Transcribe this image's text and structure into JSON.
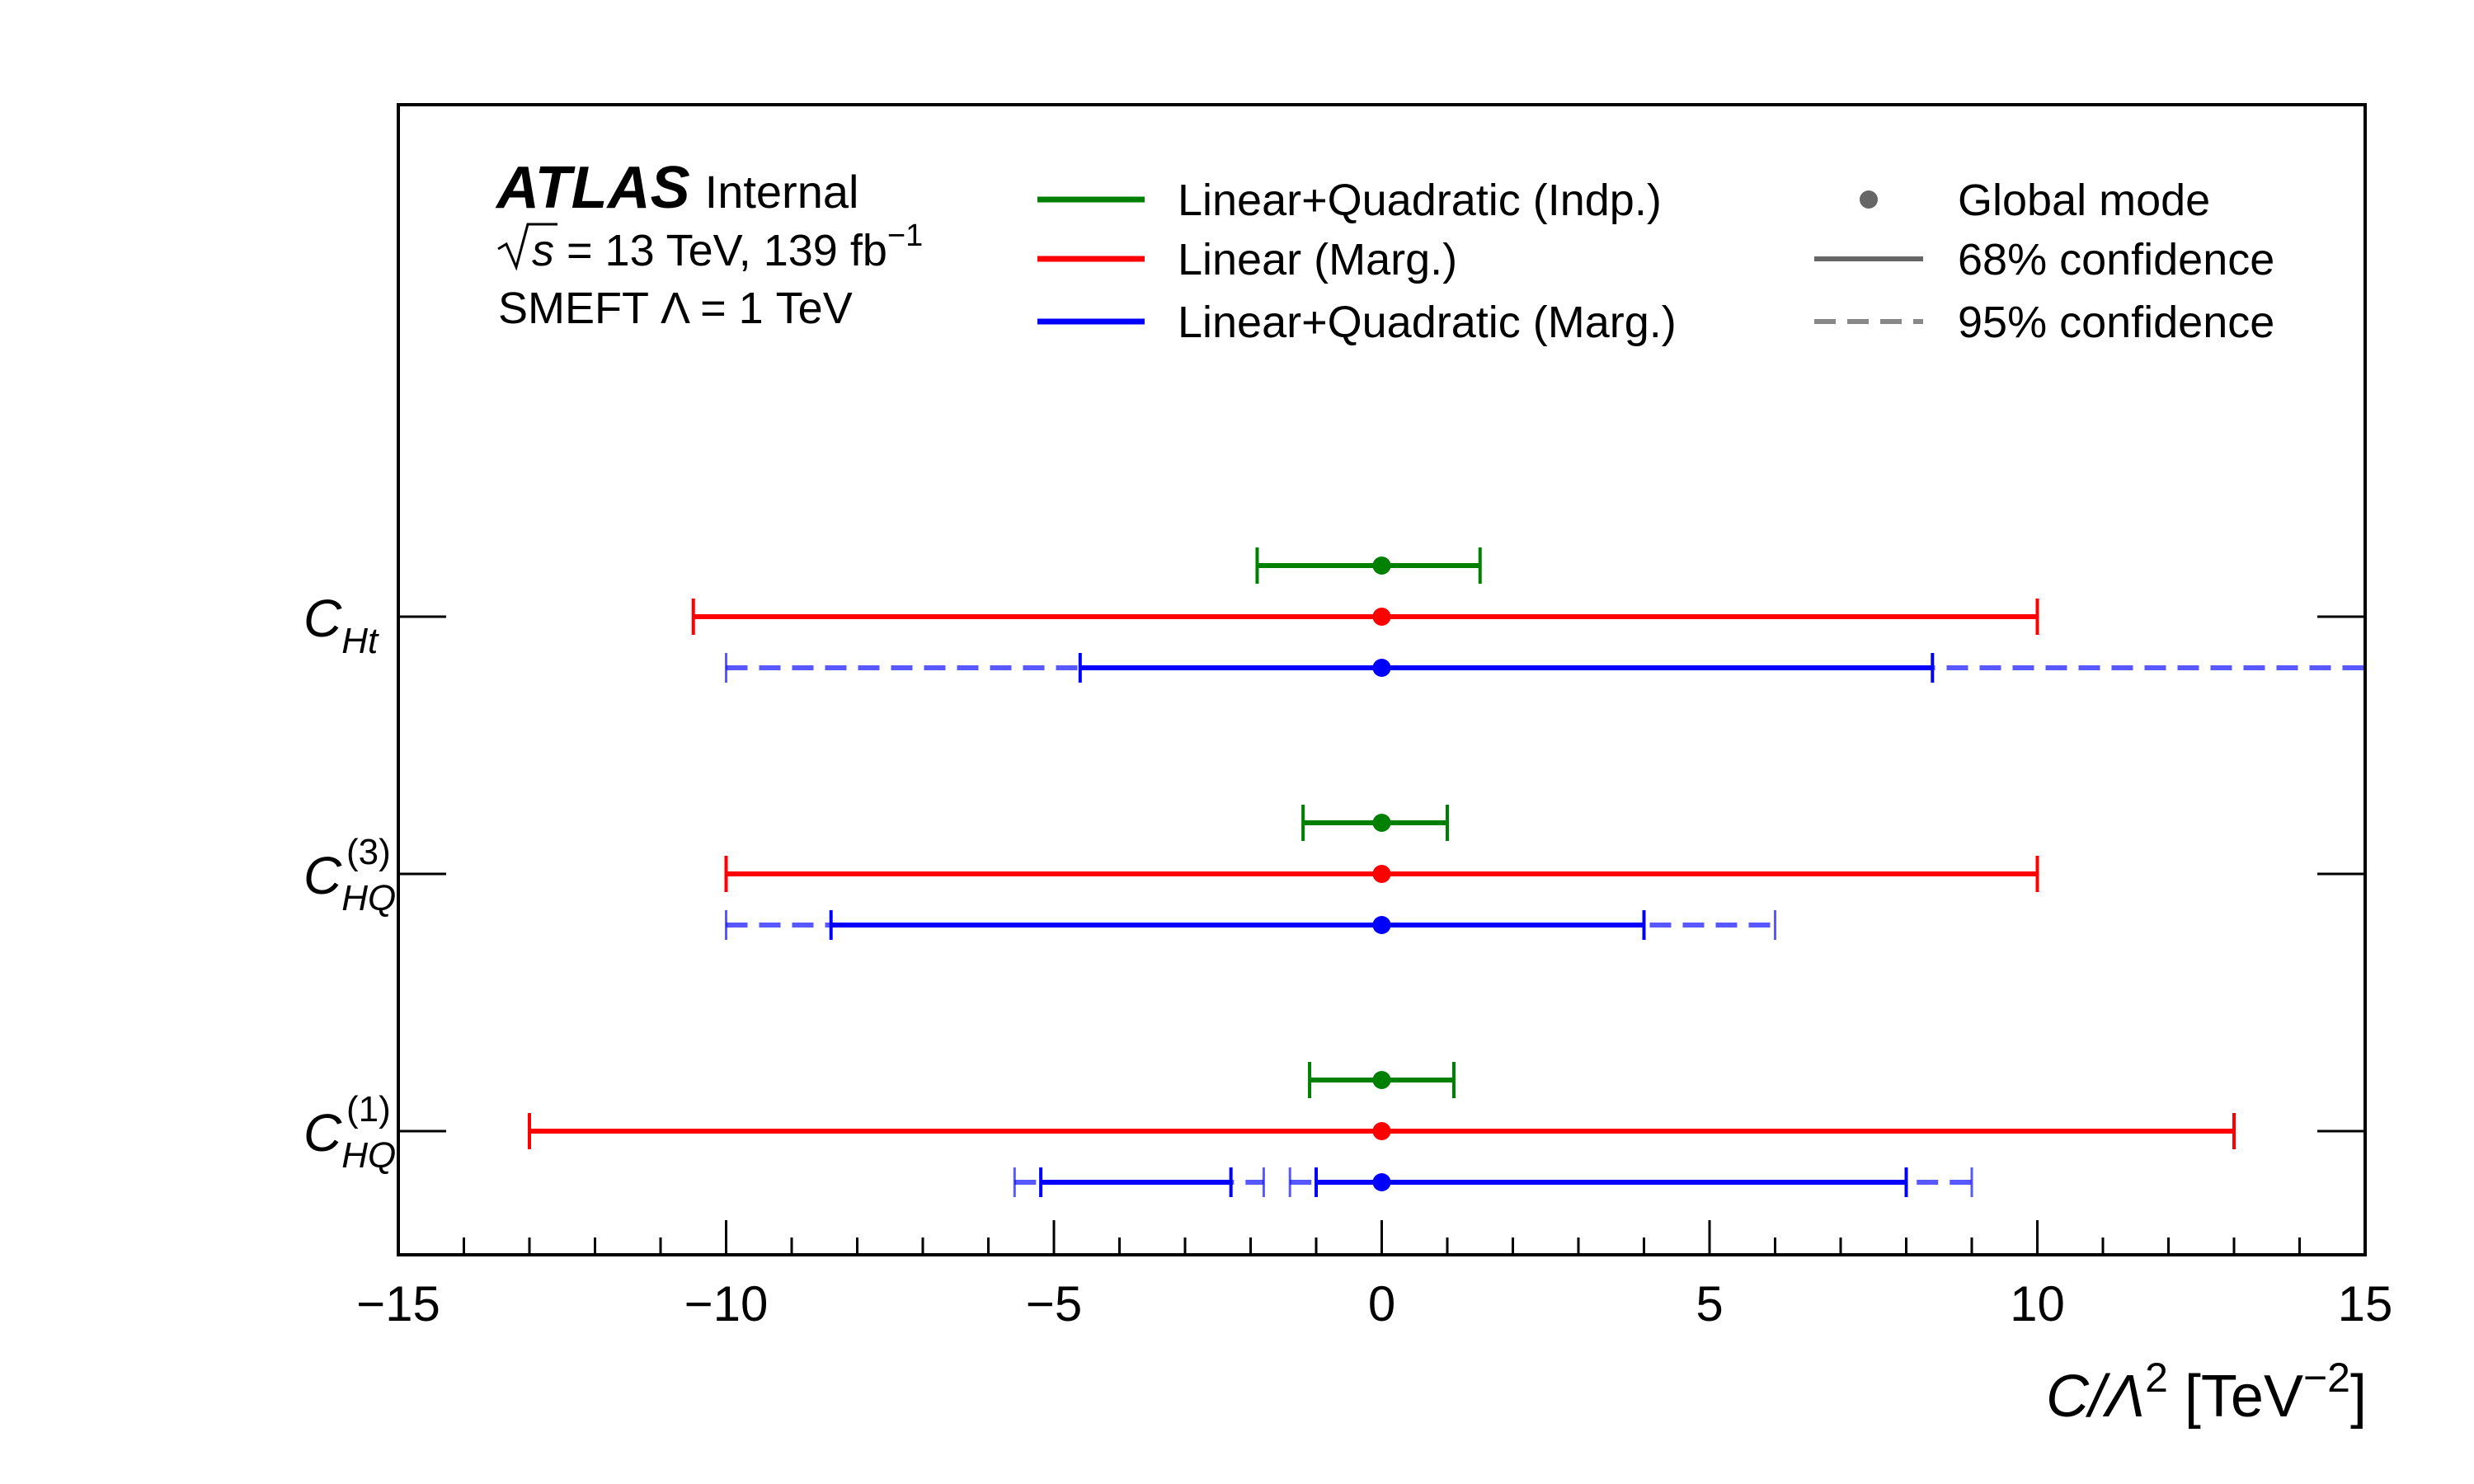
{
  "chart_data": {
    "type": "scatter",
    "title": "",
    "xlabel": {
      "main": "C/Λ",
      "sup": "2",
      "unit_open": " [TeV",
      "unit_sup": "−2",
      "unit_close": "]"
    },
    "ylabel": "",
    "xlim": [
      -15,
      15
    ],
    "x_ticks": [
      -15,
      -10,
      -5,
      0,
      5,
      10,
      15
    ],
    "x_tick_labels": [
      "−15",
      "−10",
      "−5",
      "0",
      "5",
      "10",
      "15"
    ],
    "grid": false,
    "legend_position": "top",
    "atlas_label": {
      "bold": "ATLAS",
      "text": "Internal"
    },
    "info_lines": {
      "energy_symbol": "s",
      "energy_text": " = 13 TeV, 139 fb",
      "energy_sup": "−1",
      "smeft": "SMEFT Λ = 1 TeV"
    },
    "categories": [
      {
        "id": "CHt",
        "base": "C",
        "sub": "Ht",
        "sup": ""
      },
      {
        "id": "CHQ3",
        "base": "C",
        "sub": "HQ",
        "sup": "(3)"
      },
      {
        "id": "CHQ1",
        "base": "C",
        "sub": "HQ",
        "sup": "(1)"
      }
    ],
    "series": [
      {
        "name": "Linear+Quadratic (Indp.)",
        "color": "#008000"
      },
      {
        "name": "Linear (Marg.)",
        "color": "#ff0000"
      },
      {
        "name": "Linear+Quadratic (Marg.)",
        "color": "#0000ff"
      }
    ],
    "style_legend": [
      {
        "name": "Global mode",
        "marker": "dot"
      },
      {
        "name": "68% confidence",
        "marker": "solid"
      },
      {
        "name": "95% confidence",
        "marker": "dashed"
      }
    ],
    "results": [
      {
        "category": "CHt",
        "series": 0,
        "mode": 0,
        "ci68": [
          [
            -1.9,
            1.5
          ]
        ],
        "ci95": []
      },
      {
        "category": "CHt",
        "series": 1,
        "mode": 0,
        "ci68": [
          [
            -10.5,
            10.0
          ]
        ],
        "ci95": []
      },
      {
        "category": "CHt",
        "series": 2,
        "mode": 0,
        "ci68": [
          [
            -4.6,
            8.4
          ]
        ],
        "ci95": [
          [
            -10.0,
            15.0
          ]
        ]
      },
      {
        "category": "CHQ3",
        "series": 0,
        "mode": 0,
        "ci68": [
          [
            -1.2,
            1.0
          ]
        ],
        "ci95": []
      },
      {
        "category": "CHQ3",
        "series": 1,
        "mode": 0,
        "ci68": [
          [
            -10.0,
            10.0
          ]
        ],
        "ci95": []
      },
      {
        "category": "CHQ3",
        "series": 2,
        "mode": 0,
        "ci68": [
          [
            -8.4,
            4.0
          ]
        ],
        "ci95": [
          [
            -10.0,
            6.0
          ]
        ]
      },
      {
        "category": "CHQ1",
        "series": 0,
        "mode": 0,
        "ci68": [
          [
            -1.1,
            1.1
          ]
        ],
        "ci95": []
      },
      {
        "category": "CHQ1",
        "series": 1,
        "mode": 0,
        "ci68": [
          [
            -13.0,
            13.0
          ]
        ],
        "ci95": []
      },
      {
        "category": "CHQ1",
        "series": 2,
        "mode": 0,
        "ci68": [
          [
            -5.2,
            -2.3
          ],
          [
            -1.0,
            8.0
          ]
        ],
        "ci95": [
          [
            -5.6,
            -1.8
          ],
          [
            -1.4,
            9.0
          ]
        ]
      }
    ]
  }
}
